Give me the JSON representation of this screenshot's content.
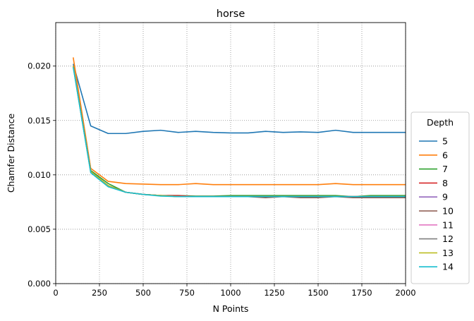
{
  "chart_data": {
    "type": "line",
    "title": "horse",
    "xlabel": "N Points",
    "ylabel": "Chamfer Distance",
    "xlim": [
      0,
      2000
    ],
    "ylim": [
      0,
      0.024
    ],
    "xticks": [
      0,
      250,
      500,
      750,
      1000,
      1250,
      1500,
      1750,
      2000
    ],
    "xtick_labels": [
      "0",
      "250",
      "500",
      "750",
      "1000",
      "1250",
      "1500",
      "1750",
      "2000"
    ],
    "yticks": [
      0,
      0.005,
      0.01,
      0.015,
      0.02
    ],
    "ytick_labels": [
      "0.000",
      "0.005",
      "0.010",
      "0.015",
      "0.020"
    ],
    "grid": true,
    "legend_title": "Depth",
    "legend_position": "right, outside plot",
    "x": [
      100,
      200,
      300,
      400,
      500,
      600,
      700,
      800,
      900,
      1000,
      1100,
      1200,
      1300,
      1400,
      1500,
      1600,
      1700,
      1800,
      1900,
      2000
    ],
    "series": [
      {
        "name": "5",
        "color": "#1f77b4",
        "values": [
          0.0202,
          0.0145,
          0.0138,
          0.0138,
          0.014,
          0.0141,
          0.0139,
          0.014,
          0.0139,
          0.01385,
          0.01385,
          0.014,
          0.0139,
          0.01395,
          0.0139,
          0.0141,
          0.0139,
          0.0139,
          0.0139,
          0.0139
        ]
      },
      {
        "name": "6",
        "color": "#ff7f0e",
        "values": [
          0.0208,
          0.0106,
          0.0094,
          0.0092,
          0.00915,
          0.0091,
          0.0091,
          0.0092,
          0.0091,
          0.0091,
          0.0091,
          0.0091,
          0.0091,
          0.0091,
          0.0091,
          0.0092,
          0.0091,
          0.0091,
          0.0091,
          0.0091
        ]
      },
      {
        "name": "7",
        "color": "#2ca02c",
        "values": [
          0.02,
          0.0104,
          0.0092,
          0.0084,
          0.0082,
          0.0081,
          0.0081,
          0.00805,
          0.00805,
          0.0081,
          0.0081,
          0.0081,
          0.0081,
          0.0081,
          0.0081,
          0.0081,
          0.008,
          0.0081,
          0.0081,
          0.0081
        ]
      },
      {
        "name": "8",
        "color": "#d62728",
        "values": [
          0.02,
          0.0103,
          0.009,
          0.0084,
          0.0082,
          0.0081,
          0.0081,
          0.008,
          0.008,
          0.008,
          0.008,
          0.008,
          0.008,
          0.008,
          0.008,
          0.008,
          0.008,
          0.008,
          0.008,
          0.008
        ]
      },
      {
        "name": "9",
        "color": "#9467bd",
        "values": [
          0.02,
          0.0103,
          0.009,
          0.0084,
          0.0082,
          0.0081,
          0.008,
          0.008,
          0.008,
          0.008,
          0.008,
          0.008,
          0.008,
          0.008,
          0.008,
          0.008,
          0.008,
          0.008,
          0.008,
          0.008
        ]
      },
      {
        "name": "10",
        "color": "#8c564b",
        "values": [
          0.02,
          0.0103,
          0.009,
          0.0084,
          0.0082,
          0.0081,
          0.008,
          0.008,
          0.008,
          0.008,
          0.008,
          0.0079,
          0.008,
          0.0079,
          0.0079,
          0.008,
          0.0079,
          0.0079,
          0.0079,
          0.0079
        ]
      },
      {
        "name": "11",
        "color": "#e377c2",
        "values": [
          0.02,
          0.0103,
          0.009,
          0.0084,
          0.0082,
          0.0081,
          0.008,
          0.008,
          0.008,
          0.008,
          0.008,
          0.008,
          0.008,
          0.008,
          0.008,
          0.008,
          0.008,
          0.008,
          0.008,
          0.008
        ]
      },
      {
        "name": "12",
        "color": "#7f7f7f",
        "values": [
          0.02,
          0.0103,
          0.009,
          0.0084,
          0.0082,
          0.0081,
          0.008,
          0.008,
          0.008,
          0.008,
          0.008,
          0.008,
          0.008,
          0.008,
          0.008,
          0.008,
          0.008,
          0.008,
          0.008,
          0.008
        ]
      },
      {
        "name": "13",
        "color": "#bcbd22",
        "values": [
          0.02,
          0.0103,
          0.009,
          0.0084,
          0.0082,
          0.0081,
          0.008,
          0.008,
          0.008,
          0.008,
          0.008,
          0.008,
          0.008,
          0.008,
          0.008,
          0.008,
          0.008,
          0.008,
          0.008,
          0.008
        ]
      },
      {
        "name": "14",
        "color": "#17becf",
        "values": [
          0.0199,
          0.0102,
          0.0089,
          0.0084,
          0.0082,
          0.00805,
          0.008,
          0.008,
          0.008,
          0.008,
          0.008,
          0.008,
          0.008,
          0.008,
          0.008,
          0.008,
          0.008,
          0.008,
          0.008,
          0.008
        ]
      }
    ]
  }
}
